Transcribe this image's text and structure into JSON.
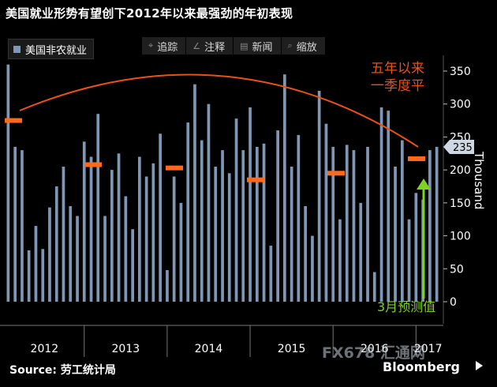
{
  "title": "美国就业形势有望创下2012年以来最强劲的年初表现",
  "legend": {
    "label": "美国非农就业",
    "color": "#7f97b5"
  },
  "toolbar": [
    {
      "icon": "crosshair-icon",
      "glyph": "⌖",
      "label": "追踪"
    },
    {
      "icon": "pencil-icon",
      "glyph": "∠",
      "label": "注释"
    },
    {
      "icon": "news-icon",
      "glyph": "▤",
      "label": "新闻"
    },
    {
      "icon": "magnifier-icon",
      "glyph": "⌕",
      "label": "缩放"
    }
  ],
  "annotation_text": "五年以来\n一季度平",
  "forecast_text": "3月预测值",
  "current_badge": "235",
  "source": "Source: 劳工统计局",
  "brand": "Bloomberg",
  "watermark": "FX678 汇通网",
  "chart_data": {
    "type": "bar",
    "ylabel": "Thousand",
    "ylim": [
      0,
      375
    ],
    "yticks": [
      0,
      50,
      100,
      150,
      200,
      250,
      300,
      350
    ],
    "year_labels": [
      "2012",
      "2013",
      "2014",
      "2015",
      "2016",
      "2017"
    ],
    "values": [
      360,
      235,
      230,
      78,
      115,
      80,
      143,
      175,
      205,
      145,
      130,
      243,
      220,
      285,
      130,
      200,
      225,
      160,
      110,
      220,
      190,
      210,
      255,
      48,
      190,
      150,
      272,
      330,
      245,
      300,
      205,
      230,
      195,
      278,
      230,
      295,
      235,
      240,
      85,
      260,
      345,
      205,
      253,
      145,
      100,
      320,
      270,
      235,
      125,
      238,
      230,
      150,
      235,
      45,
      295,
      290,
      205,
      245,
      125,
      165,
      155,
      230,
      235
    ],
    "q1_averages": [
      {
        "year": "2012",
        "value": 275
      },
      {
        "year": "2013",
        "value": 208
      },
      {
        "year": "2014",
        "value": 203
      },
      {
        "year": "2015",
        "value": 185
      },
      {
        "year": "2016",
        "value": 195
      },
      {
        "year": "2017",
        "value": 217
      }
    ],
    "series_color": "#7f97b5",
    "marker_color": "#ff6a1a",
    "arc_color": "#e8521a",
    "forecast_arrow_color": "#7ed321"
  }
}
